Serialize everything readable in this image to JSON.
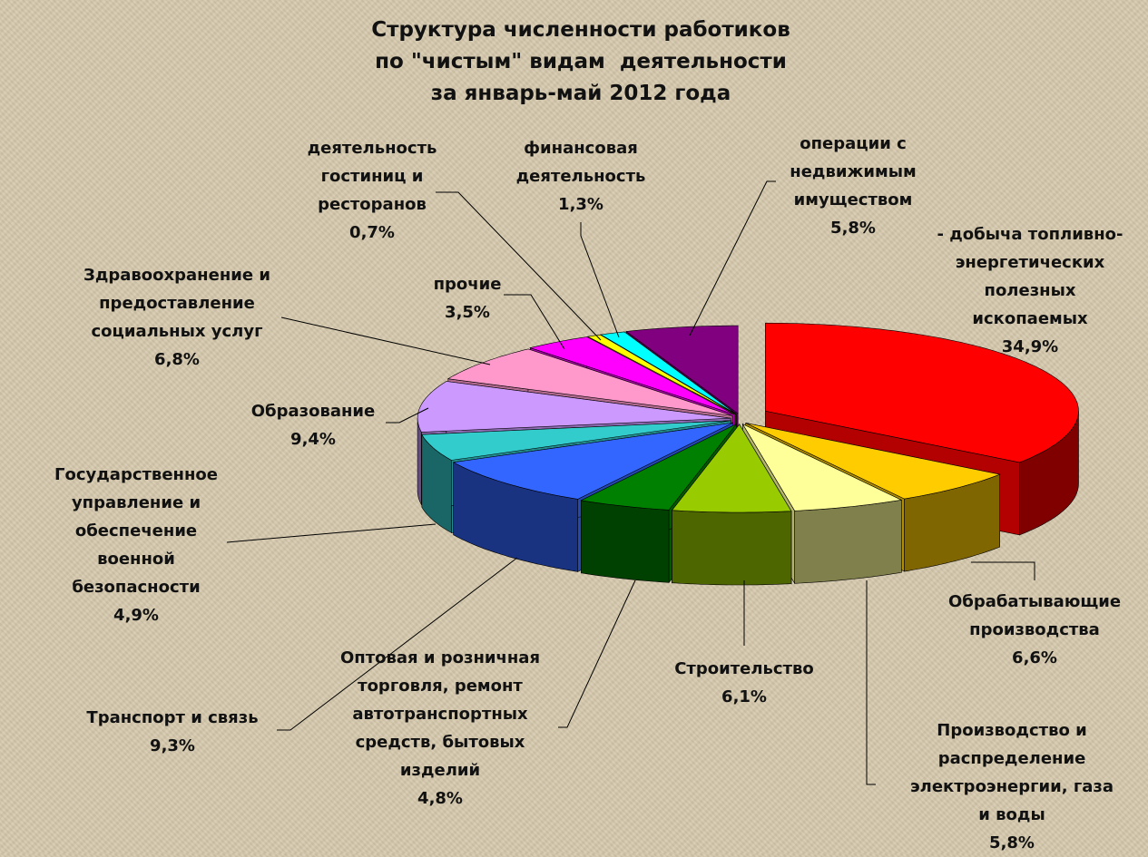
{
  "chart_data": {
    "type": "pie",
    "title": "Структура численности работиков\nпо \"чистым\" видам  деятельности\nза январь-май 2012 года",
    "categories": [
      "- добыча топливно-\nэнергетических\nполезных\nископаемых",
      "Обрабатывающие\nпроизводства",
      "Производство и\nраспределение\nэлектроэнергии, газа\nи воды",
      "Строительство",
      "Оптовая и розничная\nторговля, ремонт\nавтотранспортных\nсредств, бытовых\nизделий",
      "Транспорт и связь",
      "Государственное\nуправление и\nобеспечение\nвоенной\nбезопасности",
      "Образование",
      "Здравоохранение и\nпредоставление\nсоциальных услуг",
      "прочие",
      "деятельность\nгостиниц и\nресторанов",
      "финансовая\nдеятельность",
      "операции с\nнедвижимым\nимуществом"
    ],
    "values": [
      34.9,
      6.6,
      5.8,
      6.1,
      4.8,
      9.3,
      4.9,
      9.4,
      6.8,
      3.5,
      0.7,
      1.3,
      5.8
    ],
    "value_labels": [
      "34,9%",
      "6,6%",
      "5,8%",
      "6,1%",
      "4,8%",
      "9,3%",
      "4,9%",
      "9,4%",
      "6,8%",
      "3,5%",
      "0,7%",
      "1,3%",
      "5,8%"
    ],
    "colors": [
      "#ff0000",
      "#ffcc00",
      "#ffff99",
      "#99cc00",
      "#008000",
      "#3366ff",
      "#33cccc",
      "#cc99ff",
      "#ff99cc",
      "#ff00ff",
      "#ffff00",
      "#00ffff",
      "#800080"
    ]
  }
}
